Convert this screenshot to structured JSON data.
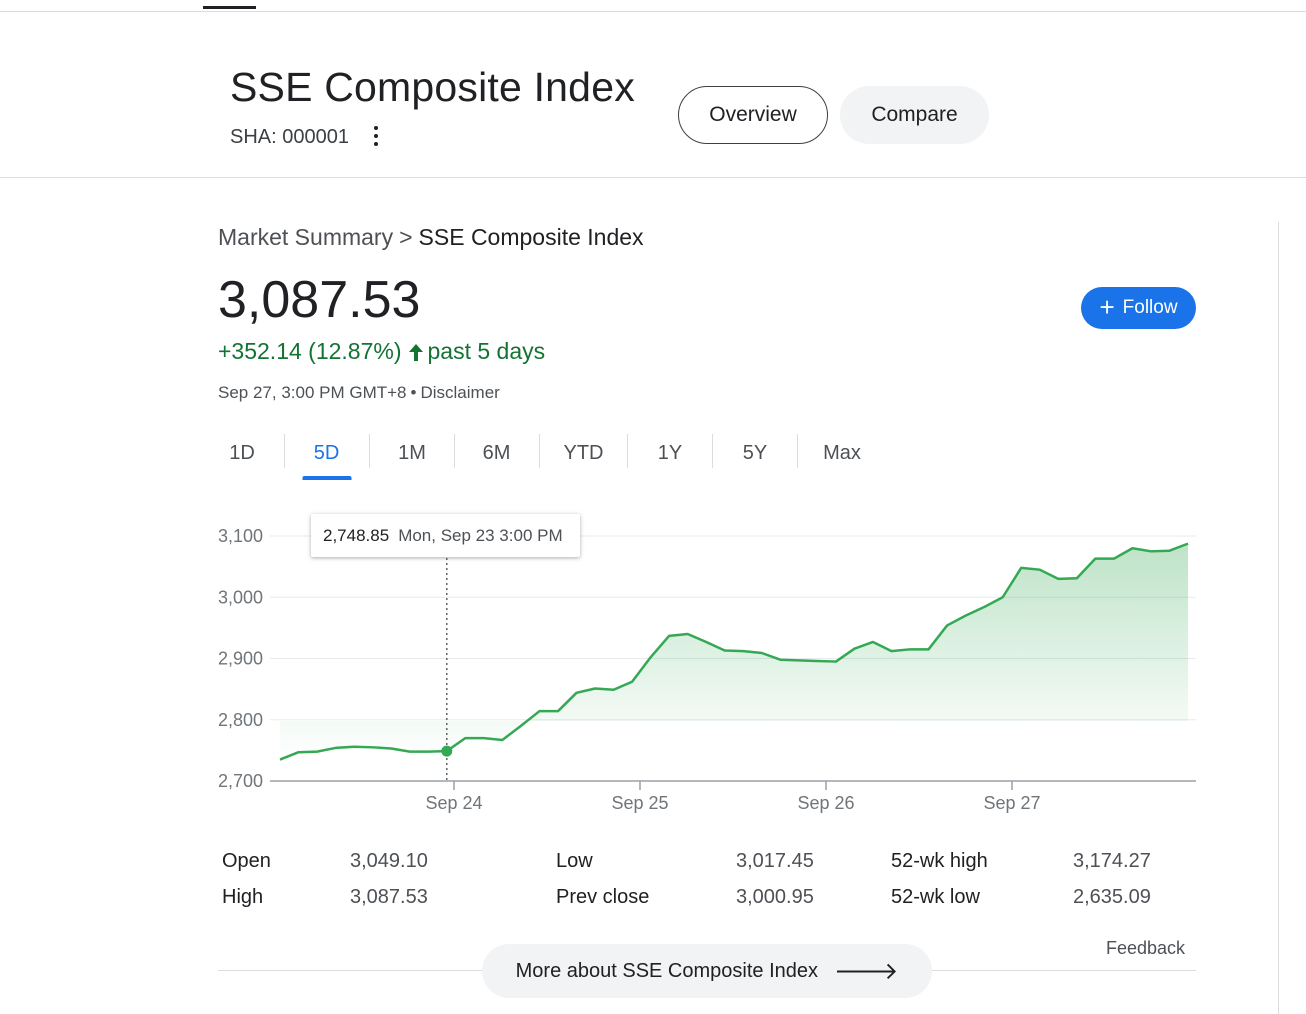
{
  "header": {
    "title": "SSE Composite Index",
    "ticker": "SHA: 000001",
    "more_icon": "more-vert-icon",
    "tabs": {
      "overview": "Overview",
      "compare": "Compare"
    }
  },
  "summary": {
    "breadcrumb_root": "Market Summary",
    "breadcrumb_sep": ">",
    "breadcrumb_current": "SSE Composite Index",
    "price": "3,087.53",
    "change": "+352.14 (12.87%)",
    "change_arrow": "🡑",
    "change_period": "past 5 days",
    "timestamp": "Sep 27, 3:00 PM GMT+8",
    "timestamp_sep": "•",
    "disclaimer": "Disclaimer",
    "follow_label": "Follow",
    "follow_icon": "plus-icon",
    "positive_color": "#137333",
    "accent_color": "#1a73e8"
  },
  "ranges": [
    "1D",
    "5D",
    "1M",
    "6M",
    "YTD",
    "1Y",
    "5Y",
    "Max"
  ],
  "active_range": "5D",
  "tooltip": {
    "value": "2,748.85",
    "date": "Mon, Sep 23 3:00 PM"
  },
  "chart_data": {
    "type": "area",
    "title": "",
    "xlabel": "",
    "ylabel": "",
    "ylim": [
      2700,
      3100
    ],
    "yticks": [
      2700,
      2800,
      2900,
      3000,
      3100
    ],
    "ytick_labels": [
      "2,700",
      "2,800",
      "2,900",
      "3,000",
      "3,100"
    ],
    "xtick_labels": [
      "Sep 24",
      "Sep 25",
      "Sep 26",
      "Sep 27"
    ],
    "grid": true,
    "line_color": "#34a853",
    "series": [
      {
        "values": [
          2735,
          2747,
          2748,
          2754,
          2756,
          2755,
          2753,
          2748,
          2748,
          2748.85,
          2770,
          2770,
          2767,
          2790,
          2814,
          2814,
          2844,
          2851,
          2849,
          2862,
          2902,
          2937,
          2940,
          2927,
          2913,
          2912,
          2909,
          2898,
          2897,
          2896,
          2895,
          2916,
          2927,
          2912,
          2915,
          2915,
          2954,
          2970,
          2984,
          3000,
          3048,
          3045,
          3030,
          3031,
          3063,
          3063,
          3080,
          3075,
          3076,
          3087.53
        ]
      }
    ],
    "highlight_index": 9
  },
  "stats": [
    {
      "label": "Open",
      "value": "3,049.10"
    },
    {
      "label": "High",
      "value": "3,087.53"
    },
    {
      "label": "Low",
      "value": "3,017.45"
    },
    {
      "label": "Prev close",
      "value": "3,000.95"
    },
    {
      "label": "52-wk high",
      "value": "3,174.27"
    },
    {
      "label": "52-wk low",
      "value": "2,635.09"
    }
  ],
  "feedback": "Feedback",
  "more_button": {
    "label": "More about SSE Composite Index",
    "icon": "arrow-right-icon"
  }
}
